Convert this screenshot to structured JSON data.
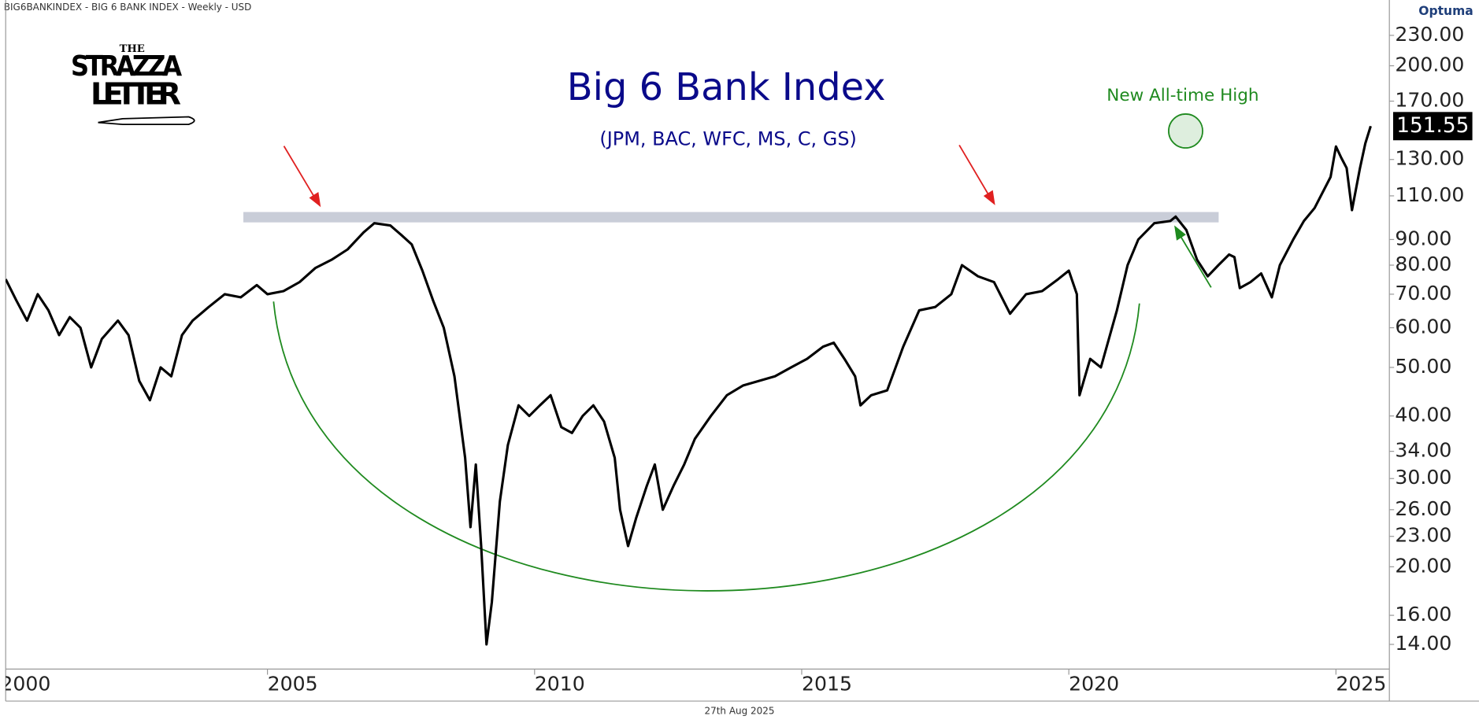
{
  "header": "BIG6BANKINDEX - BIG 6 BANK INDEX - Weekly - USD",
  "brand": "Optuma",
  "logo": {
    "top": "THE",
    "middle": "STRAZZA",
    "bottom": "LETTER"
  },
  "footer": "27th Aug 2025",
  "chart_data": {
    "type": "line",
    "title": "Big 6 Bank Index",
    "subtitle": "(JPM, BAC, WFC, MS, C, GS)",
    "annotation": "New All-time High",
    "color": "#000000",
    "log_scale": true,
    "grid": false,
    "x": [
      2000.1,
      2000.3,
      2000.5,
      2000.7,
      2000.9,
      2001.1,
      2001.3,
      2001.5,
      2001.7,
      2001.9,
      2002.2,
      2002.4,
      2002.6,
      2002.8,
      2003.0,
      2003.2,
      2003.4,
      2003.6,
      2003.9,
      2004.2,
      2004.5,
      2004.8,
      2005.0,
      2005.3,
      2005.6,
      2005.9,
      2006.2,
      2006.5,
      2006.8,
      2007.0,
      2007.3,
      2007.5,
      2007.7,
      2007.9,
      2008.1,
      2008.3,
      2008.5,
      2008.7,
      2008.8,
      2008.9,
      2009.0,
      2009.1,
      2009.2,
      2009.35,
      2009.5,
      2009.7,
      2009.9,
      2010.1,
      2010.3,
      2010.5,
      2010.7,
      2010.9,
      2011.1,
      2011.3,
      2011.5,
      2011.6,
      2011.75,
      2011.9,
      2012.1,
      2012.25,
      2012.4,
      2012.6,
      2012.8,
      2013.0,
      2013.3,
      2013.6,
      2013.9,
      2014.2,
      2014.5,
      2014.8,
      2015.1,
      2015.4,
      2015.6,
      2015.8,
      2016.0,
      2016.1,
      2016.3,
      2016.6,
      2016.9,
      2017.2,
      2017.5,
      2017.8,
      2018.0,
      2018.3,
      2018.6,
      2018.9,
      2019.2,
      2019.5,
      2019.8,
      2020.0,
      2020.15,
      2020.2,
      2020.4,
      2020.6,
      2020.9,
      2021.1,
      2021.3,
      2021.6,
      2021.9,
      2022.0,
      2022.2,
      2022.4,
      2022.6,
      2022.8,
      2023.0,
      2023.1,
      2023.2,
      2023.4,
      2023.6,
      2023.8,
      2023.95,
      2024.2,
      2024.4,
      2024.6,
      2024.9,
      2025.0,
      2025.1,
      2025.2,
      2025.3,
      2025.45,
      2025.55,
      2025.65
    ],
    "values": [
      75,
      68,
      62,
      70,
      65,
      58,
      63,
      60,
      50,
      57,
      62,
      58,
      47,
      43,
      50,
      48,
      58,
      62,
      66,
      70,
      69,
      73,
      70,
      71,
      74,
      79,
      82,
      86,
      93,
      97,
      96,
      92,
      88,
      78,
      68,
      60,
      48,
      33,
      24,
      32,
      22,
      14,
      17,
      27,
      35,
      42,
      40,
      42,
      44,
      38,
      37,
      40,
      42,
      39,
      33,
      26,
      22,
      25,
      29,
      32,
      26,
      29,
      32,
      36,
      40,
      44,
      46,
      47,
      48,
      50,
      52,
      55,
      56,
      52,
      48,
      42,
      44,
      45,
      55,
      65,
      66,
      70,
      80,
      76,
      74,
      64,
      70,
      71,
      75,
      78,
      70,
      44,
      52,
      50,
      65,
      80,
      90,
      97,
      98,
      100,
      94,
      82,
      76,
      80,
      84,
      83,
      72,
      74,
      77,
      69,
      80,
      90,
      98,
      104,
      120,
      138,
      131,
      125,
      103,
      125,
      140,
      151.55
    ],
    "xlim": [
      2000.1,
      2026
    ],
    "ylim": [
      12.5,
      246
    ],
    "xticks": [
      2000,
      2005,
      2010,
      2015,
      2020,
      2025
    ],
    "yticks": [
      {
        "value": 14,
        "label": "14.00"
      },
      {
        "value": 16,
        "label": "16.00"
      },
      {
        "value": 20,
        "label": "20.00"
      },
      {
        "value": 23,
        "label": "23.00"
      },
      {
        "value": 26,
        "label": "26.00"
      },
      {
        "value": 30,
        "label": "30.00"
      },
      {
        "value": 34,
        "label": "34.00"
      },
      {
        "value": 40,
        "label": "40.00"
      },
      {
        "value": 50,
        "label": "50.00"
      },
      {
        "value": 60,
        "label": "60.00"
      },
      {
        "value": 70,
        "label": "70.00"
      },
      {
        "value": 80,
        "label": "80.00"
      },
      {
        "value": 90,
        "label": "90.00"
      },
      {
        "value": 110,
        "label": "110.00"
      },
      {
        "value": 130,
        "label": "130.00"
      },
      {
        "value": 170,
        "label": "170.00"
      },
      {
        "value": 200,
        "label": "200.00"
      },
      {
        "value": 230,
        "label": "230.00"
      }
    ]
  }
}
